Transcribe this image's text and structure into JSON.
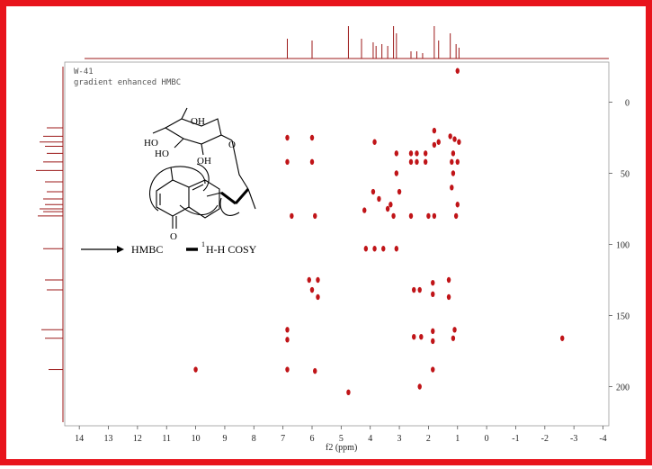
{
  "spectrum": {
    "sample": "W-41",
    "experiment": "gradient enhanced HMBC",
    "x_axis_label": "f2 (ppm)",
    "x_ticks": [
      "14",
      "13",
      "12",
      "11",
      "10",
      "9",
      "8",
      "7",
      "6",
      "5",
      "4",
      "3",
      "2",
      "1",
      "0",
      "-1",
      "-2",
      "-3",
      "-4"
    ],
    "y_ticks": [
      "0",
      "50",
      "100",
      "150",
      "200"
    ],
    "accent_color": "#c01418",
    "frame_color": "#e8141c"
  },
  "legend": {
    "hmbc_label": "HMBC",
    "cosy_label": "H-H COSY",
    "cosy_superscript": "1"
  },
  "structure": {
    "oh_1": "OH",
    "oh_2": "HO",
    "oh_3": "HO",
    "oh_4": "OH",
    "ring_o": "O",
    "ketone_o": "O"
  },
  "chart_data": {
    "type": "scatter",
    "x_label": "f2 (ppm)",
    "xlim": [
      14.5,
      -4.2
    ],
    "ylim": [
      -25,
      225
    ],
    "points": [
      {
        "x": 6.85,
        "y": 25
      },
      {
        "x": 6.0,
        "y": 25
      },
      {
        "x": 6.85,
        "y": 42
      },
      {
        "x": 6.0,
        "y": 42
      },
      {
        "x": 6.7,
        "y": 80
      },
      {
        "x": 5.9,
        "y": 80
      },
      {
        "x": 4.15,
        "y": 103
      },
      {
        "x": 3.85,
        "y": 103
      },
      {
        "x": 3.55,
        "y": 103
      },
      {
        "x": 3.1,
        "y": 103
      },
      {
        "x": 3.1,
        "y": 36
      },
      {
        "x": 3.1,
        "y": 50
      },
      {
        "x": 3.0,
        "y": 63
      },
      {
        "x": 3.3,
        "y": 72
      },
      {
        "x": 3.9,
        "y": 63
      },
      {
        "x": 3.7,
        "y": 68
      },
      {
        "x": 3.4,
        "y": 75
      },
      {
        "x": 3.2,
        "y": 80
      },
      {
        "x": 4.2,
        "y": 76
      },
      {
        "x": 3.85,
        "y": 28
      },
      {
        "x": 2.6,
        "y": 36
      },
      {
        "x": 2.4,
        "y": 36
      },
      {
        "x": 2.1,
        "y": 36
      },
      {
        "x": 2.6,
        "y": 42
      },
      {
        "x": 2.4,
        "y": 42
      },
      {
        "x": 2.1,
        "y": 42
      },
      {
        "x": 2.6,
        "y": 80
      },
      {
        "x": 2.0,
        "y": 80
      },
      {
        "x": 1.8,
        "y": 80
      },
      {
        "x": 1.05,
        "y": 80
      },
      {
        "x": 1.8,
        "y": 20
      },
      {
        "x": 1.8,
        "y": 30
      },
      {
        "x": 1.65,
        "y": 28
      },
      {
        "x": 1.25,
        "y": 24
      },
      {
        "x": 1.1,
        "y": 26
      },
      {
        "x": 0.95,
        "y": 28
      },
      {
        "x": 1.15,
        "y": 36
      },
      {
        "x": 1.2,
        "y": 42
      },
      {
        "x": 1.0,
        "y": 42
      },
      {
        "x": 1.15,
        "y": 50
      },
      {
        "x": 1.2,
        "y": 60
      },
      {
        "x": 1.0,
        "y": 72
      },
      {
        "x": 6.1,
        "y": 125
      },
      {
        "x": 5.8,
        "y": 125
      },
      {
        "x": 6.0,
        "y": 132
      },
      {
        "x": 5.8,
        "y": 137
      },
      {
        "x": 2.5,
        "y": 132
      },
      {
        "x": 2.3,
        "y": 132
      },
      {
        "x": 1.85,
        "y": 127
      },
      {
        "x": 1.85,
        "y": 135
      },
      {
        "x": 1.3,
        "y": 125
      },
      {
        "x": 1.3,
        "y": 137
      },
      {
        "x": 6.85,
        "y": 160
      },
      {
        "x": 6.85,
        "y": 167
      },
      {
        "x": 2.5,
        "y": 165
      },
      {
        "x": 2.25,
        "y": 165
      },
      {
        "x": 1.85,
        "y": 161
      },
      {
        "x": 1.85,
        "y": 168
      },
      {
        "x": 1.1,
        "y": 160
      },
      {
        "x": 1.15,
        "y": 166
      },
      {
        "x": 6.85,
        "y": 188
      },
      {
        "x": 1.85,
        "y": 188
      },
      {
        "x": 5.9,
        "y": 189
      },
      {
        "x": 10.0,
        "y": 188
      },
      {
        "x": 2.3,
        "y": 200
      },
      {
        "x": 4.75,
        "y": 204
      },
      {
        "x": 1.0,
        "y": -22
      },
      {
        "x": -2.6,
        "y": 166
      }
    ]
  }
}
